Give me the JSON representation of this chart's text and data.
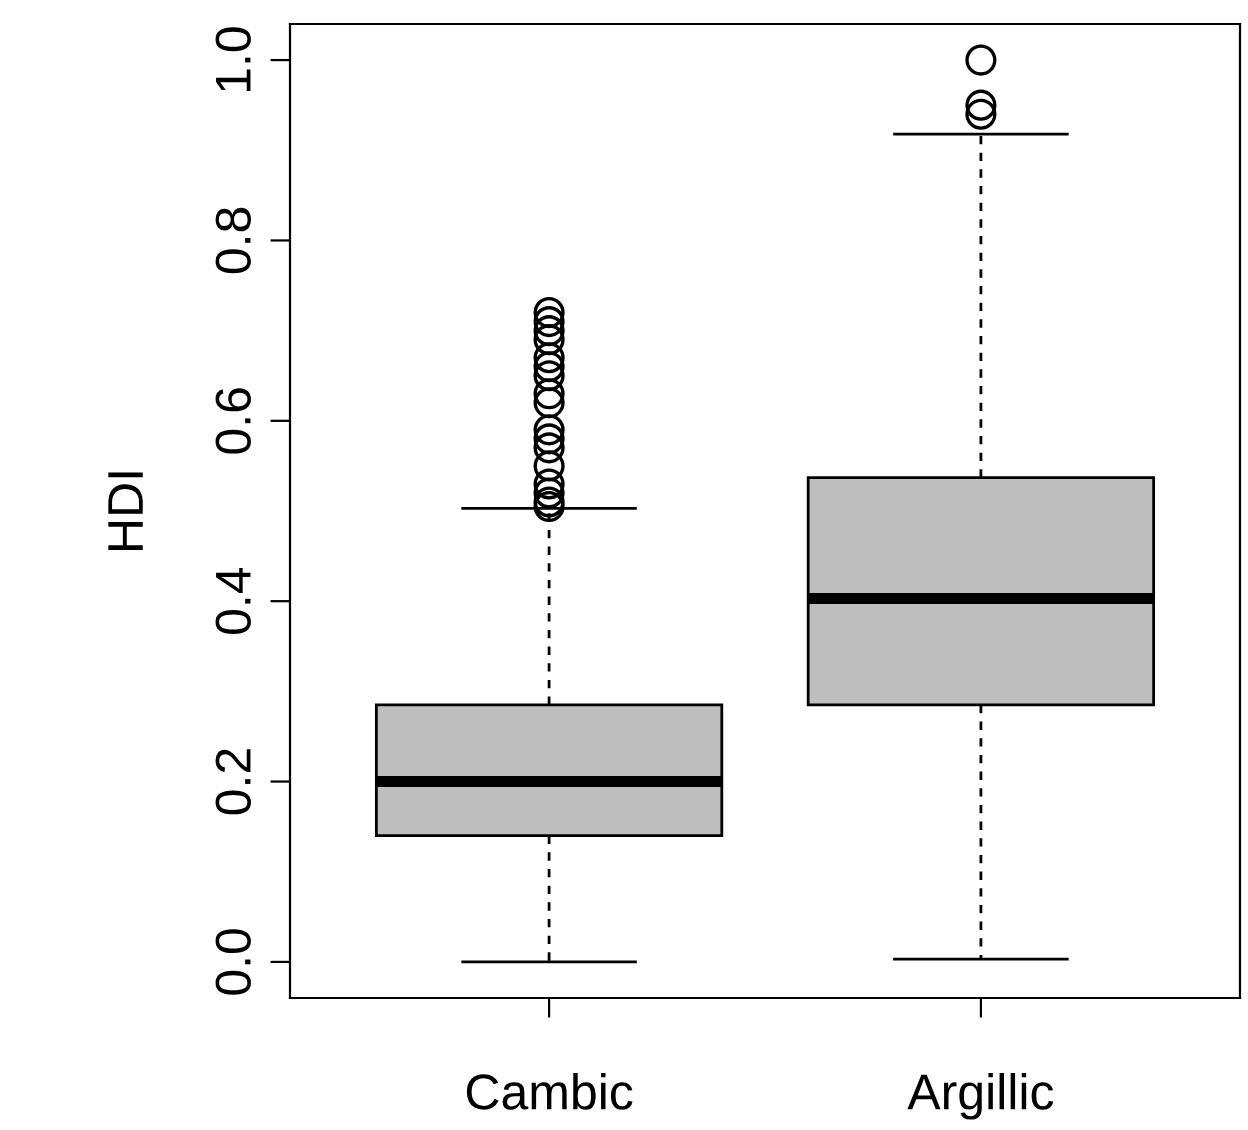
{
  "chart_data": {
    "type": "box",
    "ylabel": "HDI",
    "categories": [
      "Cambic",
      "Argillic"
    ],
    "boxes": [
      {
        "low": 0.0,
        "q1": 0.14,
        "median": 0.2,
        "q3": 0.285,
        "high": 0.503,
        "outliers": [
          0.505,
          0.51,
          0.52,
          0.53,
          0.55,
          0.57,
          0.58,
          0.59,
          0.62,
          0.63,
          0.65,
          0.66,
          0.67,
          0.69,
          0.7,
          0.71,
          0.72
        ]
      },
      {
        "low": 0.003,
        "q1": 0.285,
        "median": 0.403,
        "q3": 0.537,
        "high": 0.918,
        "outliers": [
          0.94,
          0.95,
          1.0
        ]
      }
    ],
    "color": "#bebebe",
    "ylim": [
      -0.04,
      1.04
    ],
    "yticks": [
      {
        "value": 0,
        "label": "0.0"
      },
      {
        "value": 0.2,
        "label": "0.2"
      },
      {
        "value": 0.4,
        "label": "0.4"
      },
      {
        "value": 0.6,
        "label": "0.6"
      },
      {
        "value": 0.8,
        "label": "0.8"
      },
      {
        "value": 1,
        "label": "1.0"
      }
    ],
    "grid": false,
    "legend": false
  }
}
